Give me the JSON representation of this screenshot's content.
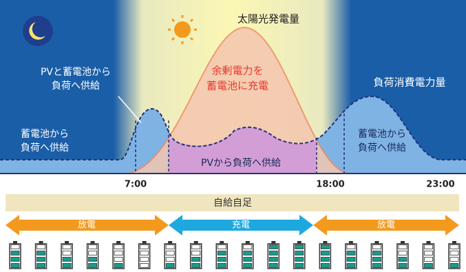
{
  "diagram": {
    "pv_label": "太陽光発電量",
    "surplus_label": [
      "余剰電力を",
      "蓄電池に充電"
    ],
    "morning_label": [
      "PVと蓄電池から",
      "負荷へ供給"
    ],
    "load_label": "負荷消費電力量",
    "night_left_label": [
      "蓄電池から",
      "負荷へ供給"
    ],
    "night_right_label": [
      "蓄電池から",
      "負荷へ供給"
    ],
    "pv_to_load_label": "PVから負荷へ供給",
    "times": [
      "7:00",
      "18:00",
      "23:00"
    ],
    "self_sufficiency": "自給自足",
    "arrows": [
      "放電",
      "充電",
      "放電"
    ],
    "battery_levels": [
      3,
      3,
      2,
      2,
      1,
      0,
      1,
      2,
      3,
      3,
      4,
      4,
      4,
      3,
      3,
      2,
      1,
      1
    ],
    "battery_segments": 4
  }
}
